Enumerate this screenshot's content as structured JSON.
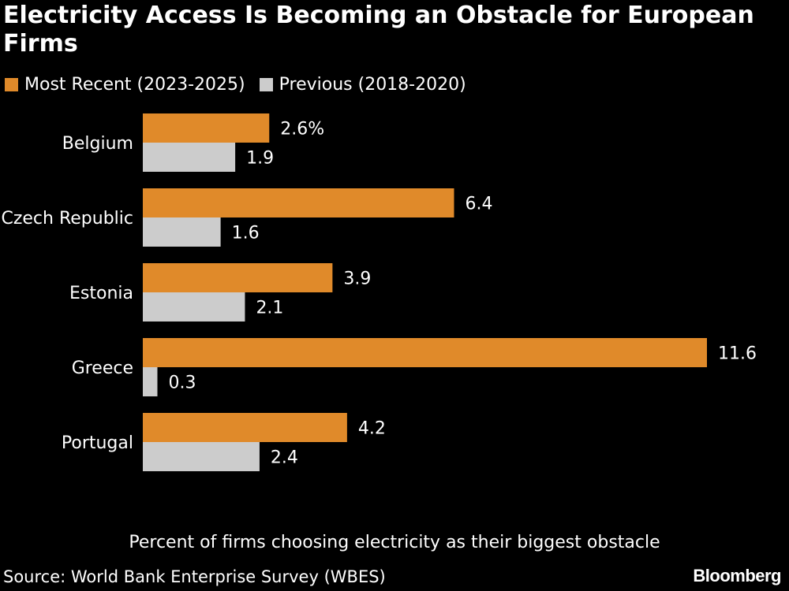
{
  "title": "Electricity Access Is Becoming an Obstacle for European Firms",
  "legend": [
    {
      "label": "Most Recent (2023-2025)",
      "color": "#E08A2A"
    },
    {
      "label": "Previous (2018-2020)",
      "color": "#CCCCCC"
    }
  ],
  "note": "Percent of firms choosing electricity as their biggest obstacle",
  "source": "Source: World Bank Enterprise Survey (WBES)",
  "brand": "Bloomberg",
  "chart_data": {
    "type": "bar",
    "orientation": "horizontal",
    "categories": [
      "Belgium",
      "Czech Republic",
      "Estonia",
      "Greece",
      "Portugal"
    ],
    "series": [
      {
        "name": "Most Recent (2023-2025)",
        "color": "#E08A2A",
        "values": [
          2.6,
          6.4,
          3.9,
          11.6,
          4.2
        ],
        "labels": [
          "2.6%",
          "6.4",
          "3.9",
          "11.6",
          "4.2"
        ]
      },
      {
        "name": "Previous (2018-2020)",
        "color": "#CCCCCC",
        "values": [
          1.9,
          1.6,
          2.1,
          0.3,
          2.4
        ],
        "labels": [
          "1.9",
          "1.6",
          "2.1",
          "0.3",
          "2.4"
        ]
      }
    ],
    "xlim": [
      0,
      11.6
    ],
    "grid": false
  }
}
